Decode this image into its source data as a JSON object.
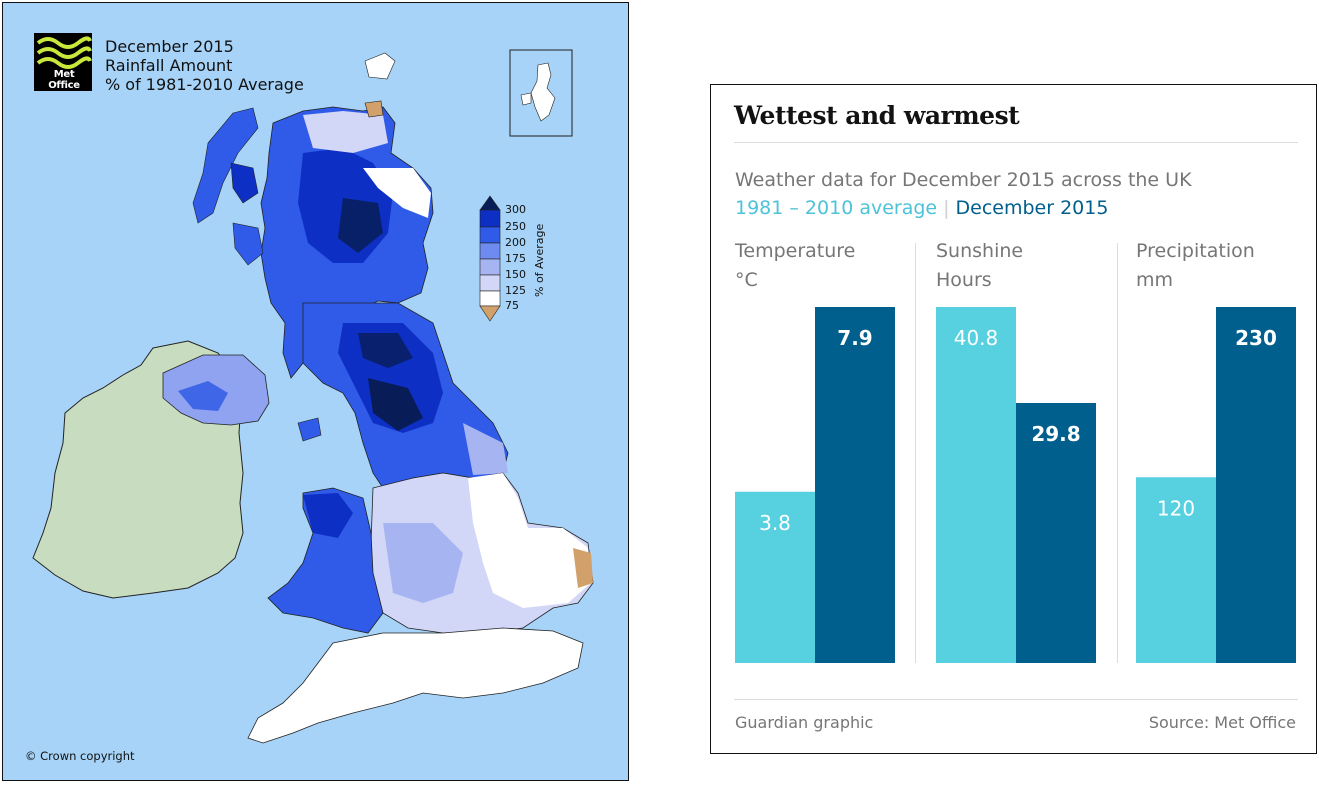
{
  "map": {
    "logo_text": "Met Office",
    "title_lines": [
      "December 2015",
      "Rainfall Amount",
      "% of 1981-2010 Average"
    ],
    "legend": {
      "axis_label": "% of Average",
      "ticks": [
        "300",
        "250",
        "200",
        "175",
        "150",
        "125",
        "75"
      ],
      "colors": [
        "#081d58",
        "#0d2fc4",
        "#2f5be8",
        "#6e8bf0",
        "#a7b4f2",
        "#d2d6f7",
        "#ffffff",
        "#d2a06a"
      ]
    },
    "land_colors": {
      "ireland": "#c8dcc0",
      "sea": "#a6d3f7"
    },
    "copyright": "© Crown copyright"
  },
  "chart": {
    "title": "Wettest and warmest",
    "subtitle": "Weather data for December 2015 across the UK",
    "legend_avg": "1981 – 2010 average",
    "legend_sep": "|",
    "legend_dec": "December 2015",
    "colors": {
      "avg": "#57d0e0",
      "dec": "#005f8c"
    },
    "credit_left": "Guardian graphic",
    "credit_right": "Source: Met Office"
  },
  "chart_data": {
    "type": "bar",
    "title": "Wettest and warmest",
    "subtitle": "Weather data for December 2015 across the UK",
    "panels": [
      {
        "label_line1": "Temperature",
        "label_line2": "°C",
        "avg": 3.8,
        "dec": 7.9,
        "avg_label": "3.8",
        "dec_label": "7.9"
      },
      {
        "label_line1": "Sunshine",
        "label_line2": "Hours",
        "avg": 40.8,
        "dec": 29.8,
        "avg_label": "40.8",
        "dec_label": "29.8"
      },
      {
        "label_line1": "Precipitation",
        "label_line2": "mm",
        "avg": 120,
        "dec": 230,
        "avg_label": "120",
        "dec_label": "230"
      }
    ],
    "series": [
      {
        "name": "1981 – 2010 average",
        "key": "avg"
      },
      {
        "name": "December 2015",
        "key": "dec"
      }
    ]
  }
}
